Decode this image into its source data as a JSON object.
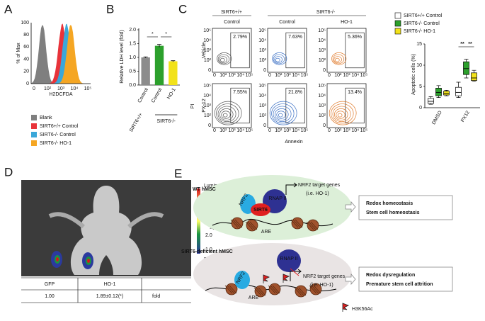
{
  "figure": {
    "A": {
      "label": "A",
      "ylabel": "% of Max",
      "xlabel": "H2DCFDA",
      "yticks": [
        "100",
        "80",
        "60",
        "40",
        "20",
        "0"
      ],
      "xticks": [
        "0",
        "10²",
        "10³",
        "10⁴",
        "10⁵"
      ],
      "legend": [
        {
          "name": "Blank",
          "color": "#7f7f7f"
        },
        {
          "name": "SIRT6+/+ Control",
          "color": "#e8333a"
        },
        {
          "name": "SIRT6-/-  Control",
          "color": "#3aa7d9"
        },
        {
          "name": "SIRT6-/-  HO-1",
          "color": "#f5a623"
        }
      ]
    },
    "B": {
      "label": "B"
    },
    "C": {
      "label": "C",
      "genotypes": [
        "SIRT6+/+",
        "SIRT6-/-"
      ],
      "columns": [
        "Control",
        "Control",
        "HO-1"
      ],
      "rows": [
        "Vehicle",
        "PX-12"
      ],
      "ylabel": "PI",
      "xlabel": "Annexin",
      "percentages": [
        [
          "2.79%",
          "7.63%",
          "5.36%"
        ],
        [
          "7.55%",
          "21.8%",
          "13.4%"
        ]
      ],
      "flow_ticks": [
        "0",
        "10²",
        "10³",
        "10⁴",
        "10⁵"
      ]
    },
    "D": {
      "label": "D",
      "colorbar_title": "Luminescence",
      "colorbar_ticks": [
        "5.0",
        "4.0",
        "3.0",
        "2.0",
        "1.0"
      ],
      "colorbar_scale": "×10⁵",
      "colorbar_unit": "Radiance",
      "colorbar_unit2": "(p/sec/cm²/sr)",
      "table": {
        "header": [
          "GFP",
          "HO-1"
        ],
        "row": [
          "1.00",
          "1.89±0.12(*)"
        ],
        "unit": "fold"
      }
    },
    "E": {
      "label": "E",
      "wt": {
        "title": "WT hMSC",
        "genes": "NRF2 target genes",
        "genes_note": "(i.e. HO-1)",
        "nrf2": "NRF2",
        "sirt6": "SIRT6",
        "rnap": "RNAP II",
        "are": "ARE",
        "outcome": [
          "Redox homeostasis",
          "Stem cell homeostasis"
        ]
      },
      "ko": {
        "title": "SIRT6-deficient hMSC",
        "genes": "NRF2 target genes",
        "genes_note": "(i.e. HO-1)",
        "nrf2": "NRF2",
        "rnap": "RNAP II",
        "are": "ARE",
        "outcome": [
          "Redox dysregulation",
          "Premature stem cell attrition"
        ]
      },
      "mark_legend": "H3K56Ac"
    }
  },
  "chart_data": [
    {
      "type": "bar",
      "ylabel": "Relative LDH level (fold)",
      "categories": [
        "Control",
        "Control",
        "HO-1"
      ],
      "group_labels": [
        "SIRT6+/+",
        "SIRT6-/-"
      ],
      "values": [
        1.0,
        1.42,
        0.86
      ],
      "errors": [
        0.02,
        0.05,
        0.02
      ],
      "colors": [
        "#8c8c8c",
        "#2ca02c",
        "#f2e21a"
      ],
      "ylim": [
        0,
        2
      ],
      "yticks": [
        {
          "value": 0,
          "label": "0.0"
        },
        0.5,
        {
          "value": 1,
          "label": "1.0"
        },
        1.5,
        {
          "value": 2,
          "label": "2.0"
        }
      ],
      "annotations": [
        "*",
        "*"
      ]
    },
    {
      "type": "box",
      "ylabel": "Apoptotic cells (%)",
      "categories": [
        "DMSO",
        "PX12"
      ],
      "series": [
        {
          "name": "SIRT6+/+ Control",
          "color": "#ffffff",
          "values": [
            {
              "min": 0.8,
              "q1": 1.0,
              "median": 1.5,
              "q3": 2.2,
              "max": 2.6
            },
            {
              "min": 2.4,
              "q1": 2.8,
              "median": 3.6,
              "q3": 4.8,
              "max": 6.0
            }
          ]
        },
        {
          "name": "SIRT6-/-  Control",
          "color": "#2ca02c",
          "values": [
            {
              "min": 2.4,
              "q1": 2.8,
              "median": 3.6,
              "q3": 4.6,
              "max": 5.2
            },
            {
              "min": 7.0,
              "q1": 7.8,
              "median": 9.2,
              "q3": 10.8,
              "max": 11.4
            }
          ]
        },
        {
          "name": "SIRT6-/-  HO-1",
          "color": "#f2e21a",
          "values": [
            {
              "min": 2.8,
              "q1": 3.0,
              "median": 3.4,
              "q3": 3.9,
              "max": 4.1
            },
            {
              "min": 6.2,
              "q1": 6.4,
              "median": 7.0,
              "q3": 8.2,
              "max": 8.8
            }
          ]
        }
      ],
      "ylim": [
        0,
        15
      ],
      "yticks": [
        0,
        5,
        10,
        15
      ],
      "annotations": [
        "**",
        "**"
      ]
    }
  ]
}
